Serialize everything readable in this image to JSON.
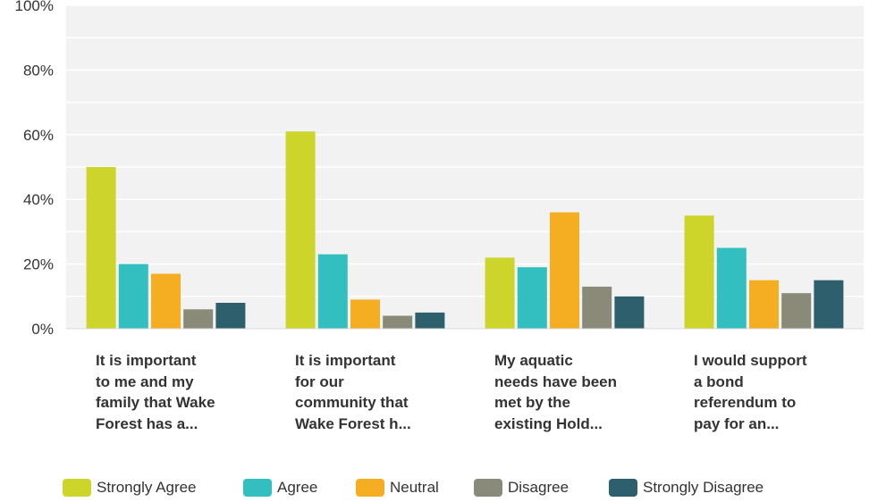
{
  "chart_data": {
    "type": "bar",
    "ylim": [
      0,
      100
    ],
    "yticks": [
      "0%",
      "20%",
      "40%",
      "60%",
      "80%",
      "100%"
    ],
    "categories": [
      [
        "It is important",
        "to me and my",
        "family that Wake",
        "Forest has a..."
      ],
      [
        "It is important",
        "for our",
        "community that",
        "Wake Forest h..."
      ],
      [
        "My aquatic",
        "needs have been",
        "met by the",
        "existing Hold..."
      ],
      [
        "I would support",
        "a bond",
        "referendum to",
        "pay for an..."
      ]
    ],
    "series": [
      {
        "name": "Strongly Agree",
        "color": "#cdd52a",
        "values": [
          50,
          61,
          22,
          35
        ]
      },
      {
        "name": "Agree",
        "color": "#33bec0",
        "values": [
          20,
          23,
          19,
          25
        ]
      },
      {
        "name": "Neutral",
        "color": "#f5ad22",
        "values": [
          17,
          9,
          36,
          15
        ]
      },
      {
        "name": "Disagree",
        "color": "#8a8a78",
        "values": [
          6,
          4,
          13,
          11
        ]
      },
      {
        "name": "Strongly Disagree",
        "color": "#2d5f6d",
        "values": [
          8,
          5,
          10,
          15
        ]
      }
    ],
    "grid": true,
    "legend": "bottom"
  }
}
